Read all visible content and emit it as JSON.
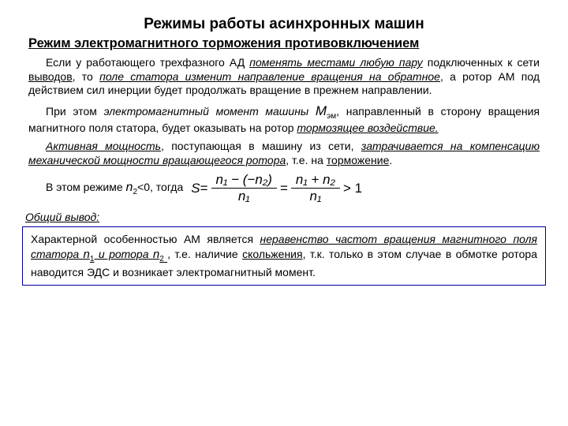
{
  "title": "Режимы работы асинхронных машин",
  "subtitle": "Режим электромагнитного торможения противовключением",
  "p1_a": "Если у работающего трехфазного АД ",
  "p1_u1": "поменять местами любую пару",
  "p1_b": " подключенных к сети ",
  "p1_u2": "выводов",
  "p1_c": ", то ",
  "p1_u3": "поле статора изменит направление вращения на обратное",
  "p1_d": ", а ротор АМ под действием сил инерции будет продолжать вращение в прежнем направлении.",
  "p2_a": "При этом ",
  "p2_i1": "электромагнитный момент машины ",
  "p2_m": "М",
  "p2_sub": "эм",
  "p2_b": ", направленный в сторону вращения магнитного поля статора, будет оказывать на ротор ",
  "p2_u1": "тормозящее воздействие.",
  "p3_u1": "Активная мощность",
  "p3_a": ", поступающая в машину из сети, ",
  "p3_u2": "затрачивается на компенсацию механической мощности вращающегося ротора",
  "p3_b": ", т.е. на ",
  "p3_u3": "торможение",
  "p3_c": ".",
  "p4_a": "В этом режиме ",
  "p4_n": "n",
  "p4_sub": "2",
  "p4_b": "<0, тогда",
  "f_s": "S",
  "f_eq": " = ",
  "f_num1": "n₁ − (−n₂)",
  "f_den1": "n₁",
  "f_num2": "n₁ + n₂",
  "f_den2": "n₁",
  "f_gt": " > 1",
  "concl_label": "Общий вывод:",
  "box_a": "Характерной особенностью АМ является ",
  "box_u1": "неравенство частот вращения магнитного поля статора ",
  "box_n1": "n",
  "box_s1": "1",
  "box_u2": " и ротора ",
  "box_n2": "n",
  "box_s2": "2 ",
  "box_b": ", т.е. наличие ",
  "box_u3": "скольжения",
  "box_c": ", т.к. только в этом случае в обмотке ротора наводится ЭДС и возникает электромагнитный момент."
}
